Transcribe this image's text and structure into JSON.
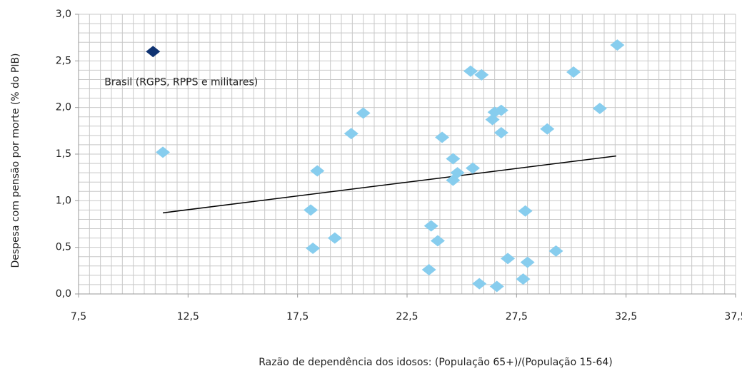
{
  "chart_data": {
    "type": "scatter",
    "x_label": "Razão de dependência dos idosos: (População 65+)/(População 15-64)",
    "y_label": "Despesa com pensão por morte (% do PIB)",
    "xlim": [
      7.5,
      37.5
    ],
    "ylim": [
      0,
      3
    ],
    "xticks": [
      {
        "value": 7.5,
        "label": "7,5"
      },
      {
        "value": 12.5,
        "label": "12,5"
      },
      {
        "value": 17.5,
        "label": "17,5"
      },
      {
        "value": 22.5,
        "label": "22,5"
      },
      {
        "value": 27.5,
        "label": "27,5"
      },
      {
        "value": 32.5,
        "label": "32,5"
      },
      {
        "value": 37.5,
        "label": "37,5"
      }
    ],
    "yticks": [
      {
        "value": 0,
        "label": "0,0"
      },
      {
        "value": 0.5,
        "label": "0,5"
      },
      {
        "value": 1,
        "label": "1,0"
      },
      {
        "value": 1.5,
        "label": "1,5"
      },
      {
        "value": 2,
        "label": "2,0"
      },
      {
        "value": 2.5,
        "label": "2,5"
      },
      {
        "value": 3,
        "label": "3,0"
      }
    ],
    "grid": true,
    "x_minor_step": 0.5,
    "y_minor_step": 0.1,
    "series": [
      {
        "color": "#87cdee",
        "x": [
          11.35,
          18.4,
          18.1,
          18.2,
          19.2,
          19.95,
          20.5,
          24.1,
          24.6,
          24.8,
          24.6,
          25.5,
          23.6,
          23.9,
          23.5,
          25.4,
          25.9,
          26.5,
          26.8,
          26.4,
          26.8,
          25.8,
          26.6,
          27.1,
          27.8,
          28.0,
          27.9,
          28.9,
          29.3,
          30.1,
          31.3,
          32.1
        ],
        "values": [
          1.52,
          1.32,
          0.9,
          0.49,
          0.6,
          1.72,
          1.94,
          1.68,
          1.45,
          1.3,
          1.22,
          1.35,
          0.73,
          0.57,
          0.26,
          2.39,
          2.35,
          1.95,
          1.97,
          1.87,
          1.73,
          0.11,
          0.08,
          0.38,
          0.16,
          0.34,
          0.89,
          1.77,
          0.46,
          2.38,
          1.99,
          2.67
        ]
      },
      {
        "name": "Brasil (RGPS, RPPS e militares)",
        "color": "#0f3372",
        "x": [
          10.9
        ],
        "values": [
          2.6
        ]
      }
    ],
    "trendline": {
      "color": "#000000",
      "x": [
        11.35,
        32.05
      ],
      "values": [
        0.87,
        1.48
      ]
    }
  }
}
